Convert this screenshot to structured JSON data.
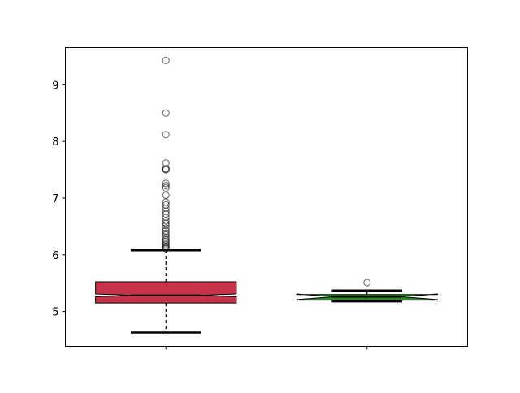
{
  "chart_data": {
    "type": "boxplot",
    "title": "",
    "xlabel": "",
    "ylabel": "",
    "xlim": [
      0.5,
      2.5
    ],
    "ylim": [
      4.386,
      9.657
    ],
    "yticks": [
      5,
      6,
      7,
      8,
      9
    ],
    "grid": false,
    "notched": true,
    "boxes": [
      {
        "position": 1,
        "color": "#c8334a",
        "whisker_low": 4.63,
        "q1": 5.15,
        "median": 5.286,
        "q3": 5.525,
        "whisker_high": 6.08,
        "notch_low": 5.26,
        "notch_high": 5.31,
        "whisker_style": "dashed",
        "outliers": [
          9.43,
          8.5,
          8.12,
          7.62,
          7.52,
          7.51,
          7.5,
          7.26,
          7.22,
          7.18,
          7.05,
          6.93,
          6.88,
          6.82,
          6.77,
          6.72,
          6.66,
          6.6,
          6.56,
          6.52,
          6.47,
          6.42,
          6.38,
          6.35,
          6.31,
          6.27,
          6.24,
          6.21,
          6.18,
          6.15,
          6.13,
          6.11
        ]
      },
      {
        "position": 2,
        "color": "#228b22",
        "whisker_low": 5.18,
        "q1": 5.2,
        "median": 5.26,
        "q3": 5.3,
        "whisker_high": 5.37,
        "notch_low": 5.21,
        "notch_high": 5.31,
        "whisker_style": "solid",
        "outliers": [
          5.51
        ]
      }
    ]
  }
}
